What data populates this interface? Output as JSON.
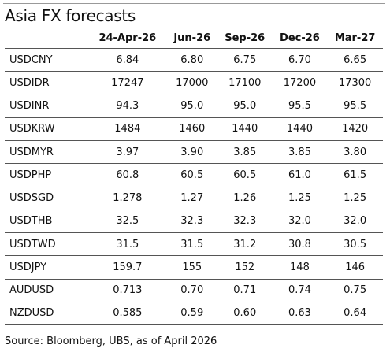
{
  "header": {
    "title": "Asia FX forecasts"
  },
  "table": {
    "columns": [
      "",
      "24-Apr-26",
      "Jun-26",
      "Sep-26",
      "Dec-26",
      "Mar-27"
    ],
    "rows": [
      [
        "USDCNY",
        "6.84",
        "6.80",
        "6.75",
        "6.70",
        "6.65"
      ],
      [
        "USDIDR",
        "17247",
        "17000",
        "17100",
        "17200",
        "17300"
      ],
      [
        "USDINR",
        "94.3",
        "95.0",
        "95.0",
        "95.5",
        "95.5"
      ],
      [
        "USDKRW",
        "1484",
        "1460",
        "1440",
        "1440",
        "1420"
      ],
      [
        "USDMYR",
        "3.97",
        "3.90",
        "3.85",
        "3.85",
        "3.80"
      ],
      [
        "USDPHP",
        "60.8",
        "60.5",
        "60.5",
        "61.0",
        "61.5"
      ],
      [
        "USDSGD",
        "1.278",
        "1.27",
        "1.26",
        "1.25",
        "1.25"
      ],
      [
        "USDTHB",
        "32.5",
        "32.3",
        "32.3",
        "32.0",
        "32.0"
      ],
      [
        "USDTWD",
        "31.5",
        "31.5",
        "31.2",
        "30.8",
        "30.5"
      ],
      [
        "USDJPY",
        "159.7",
        "155",
        "152",
        "148",
        "146"
      ],
      [
        "AUDUSD",
        "0.713",
        "0.70",
        "0.71",
        "0.74",
        "0.75"
      ],
      [
        "NZDUSD",
        "0.585",
        "0.59",
        "0.60",
        "0.63",
        "0.64"
      ]
    ]
  },
  "footer": {
    "source": "Source: Bloomberg, UBS, as of April 2026"
  }
}
